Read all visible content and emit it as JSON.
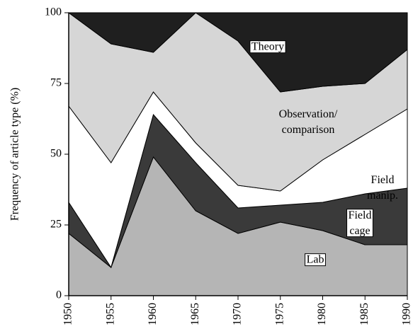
{
  "chart_data": {
    "type": "stacked_area",
    "y_label": "Frequency of article type (%)",
    "x": [
      1950,
      1955,
      1960,
      1965,
      1970,
      1975,
      1980,
      1985,
      1990
    ],
    "xlim": [
      1950,
      1990
    ],
    "xticks": [
      1950,
      1955,
      1960,
      1965,
      1970,
      1975,
      1980,
      1985,
      1990
    ],
    "ylim": [
      0,
      100
    ],
    "yticks": [
      0,
      25,
      50,
      75,
      100
    ],
    "series": [
      {
        "name": "Lab",
        "color": "#b5b5b5",
        "values": [
          22,
          10,
          49,
          30,
          22,
          26,
          23,
          18,
          18
        ]
      },
      {
        "name": "Field cage",
        "color": "#3a3a3a",
        "values": [
          11,
          0,
          15,
          17,
          9,
          6,
          10,
          18,
          20
        ]
      },
      {
        "name": "Field manip.",
        "color": "#ffffff",
        "values": [
          34,
          37,
          8,
          7,
          8,
          5,
          15,
          21,
          28
        ]
      },
      {
        "name": "Observation/ comparison",
        "color": "#d6d6d6",
        "values": [
          33,
          42,
          14,
          46,
          51,
          35,
          26,
          18,
          21
        ]
      },
      {
        "name": "Theory",
        "color": "#1f1f1f",
        "values": [
          0,
          11,
          14,
          0,
          10,
          28,
          26,
          25,
          13
        ]
      }
    ]
  }
}
